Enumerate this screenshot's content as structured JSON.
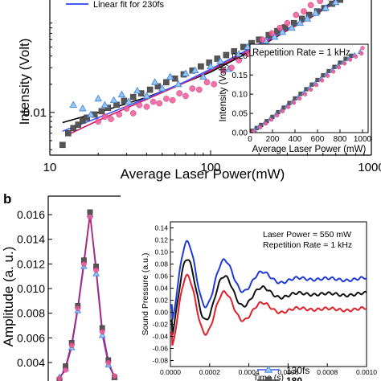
{
  "chart_data": [
    {
      "type": "scatter",
      "panel": "a",
      "xscale": "log",
      "yscale": "log",
      "xlabel": "Average Laser Power(mW)",
      "ylabel": "Intensity (Volt)",
      "xlim": [
        10,
        1000
      ],
      "ylim": [
        0.0035,
        0.35
      ],
      "x_ticks": [
        "10",
        "100",
        "1000"
      ],
      "y_ticks": [
        "0.01"
      ],
      "legend_visible": [
        "Linear fit for 230fs"
      ],
      "series": [
        {
          "marker": "square",
          "color": "#555555",
          "points": [
            [
              12,
              0.0045
            ],
            [
              13,
              0.006
            ],
            [
              14,
              0.0068
            ],
            [
              15,
              0.0074
            ],
            [
              16,
              0.0082
            ],
            [
              17,
              0.0088
            ],
            [
              19,
              0.0095
            ],
            [
              21,
              0.0103
            ],
            [
              23,
              0.0112
            ],
            [
              26,
              0.0121
            ],
            [
              29,
              0.0133
            ],
            [
              33,
              0.0146
            ],
            [
              37,
              0.016
            ],
            [
              42,
              0.0175
            ],
            [
              47,
              0.019
            ],
            [
              53,
              0.021
            ],
            [
              60,
              0.023
            ],
            [
              68,
              0.0255
            ],
            [
              77,
              0.028
            ],
            [
              87,
              0.031
            ],
            [
              98,
              0.034
            ],
            [
              110,
              0.0375
            ],
            [
              125,
              0.041
            ],
            [
              140,
              0.045
            ],
            [
              160,
              0.05
            ],
            [
              180,
              0.055
            ],
            [
              200,
              0.06
            ],
            [
              230,
              0.067
            ],
            [
              260,
              0.074
            ],
            [
              290,
              0.081
            ],
            [
              330,
              0.09
            ],
            [
              370,
              0.1
            ],
            [
              410,
              0.11
            ],
            [
              460,
              0.12
            ],
            [
              510,
              0.13
            ],
            [
              570,
              0.145
            ],
            [
              640,
              0.16
            ],
            [
              710,
              0.175
            ],
            [
              800,
              0.2
            ]
          ]
        },
        {
          "marker": "triangle",
          "color": "#4a8fe0",
          "points": [
            [
              14,
              0.012
            ],
            [
              16,
              0.011
            ],
            [
              18,
              0.0095
            ],
            [
              20,
              0.014
            ],
            [
              22,
              0.012
            ],
            [
              25,
              0.0135
            ],
            [
              28,
              0.0155
            ],
            [
              31,
              0.013
            ],
            [
              35,
              0.017
            ],
            [
              40,
              0.015
            ],
            [
              45,
              0.021
            ],
            [
              50,
              0.018
            ],
            [
              56,
              0.024
            ],
            [
              63,
              0.02
            ],
            [
              70,
              0.026
            ],
            [
              80,
              0.028
            ],
            [
              90,
              0.024
            ],
            [
              100,
              0.031
            ],
            [
              115,
              0.035
            ],
            [
              130,
              0.029
            ],
            [
              150,
              0.042
            ],
            [
              170,
              0.05
            ],
            [
              190,
              0.045
            ],
            [
              220,
              0.058
            ],
            [
              250,
              0.064
            ],
            [
              280,
              0.072
            ],
            [
              320,
              0.08
            ],
            [
              360,
              0.09
            ],
            [
              400,
              0.1
            ],
            [
              450,
              0.115
            ],
            [
              520,
              0.13
            ],
            [
              600,
              0.15
            ],
            [
              700,
              0.17
            ]
          ]
        },
        {
          "marker": "circle",
          "color": "#ee5a9a",
          "points": [
            [
              20,
              0.008
            ],
            [
              22,
              0.009
            ],
            [
              24,
              0.0085
            ],
            [
              27,
              0.0095
            ],
            [
              30,
              0.011
            ],
            [
              33,
              0.0098
            ],
            [
              36,
              0.012
            ],
            [
              40,
              0.0115
            ],
            [
              44,
              0.013
            ],
            [
              48,
              0.0125
            ],
            [
              53,
              0.014
            ],
            [
              58,
              0.0135
            ],
            [
              64,
              0.016
            ],
            [
              70,
              0.015
            ],
            [
              77,
              0.018
            ],
            [
              85,
              0.0175
            ],
            [
              95,
              0.021
            ],
            [
              105,
              0.02
            ],
            [
              120,
              0.028
            ],
            [
              135,
              0.03
            ],
            [
              150,
              0.036
            ],
            [
              170,
              0.042
            ],
            [
              190,
              0.05
            ],
            [
              210,
              0.06
            ],
            [
              240,
              0.07
            ],
            [
              270,
              0.08
            ],
            [
              300,
              0.09
            ],
            [
              340,
              0.11
            ],
            [
              380,
              0.12
            ],
            [
              420,
              0.14
            ],
            [
              480,
              0.155
            ],
            [
              540,
              0.17
            ],
            [
              600,
              0.19
            ]
          ]
        }
      ],
      "fits": [
        {
          "color": "#000000",
          "points": [
            [
              12,
              0.0078
            ],
            [
              20,
              0.01
            ],
            [
              40,
              0.0145
            ],
            [
              70,
              0.021
            ],
            [
              100,
              0.027
            ],
            [
              200,
              0.05
            ],
            [
              400,
              0.1
            ],
            [
              600,
              0.16
            ],
            [
              700,
              0.2
            ]
          ]
        },
        {
          "color": "#d81b60",
          "points": [
            [
              13,
              0.0058
            ],
            [
              20,
              0.0082
            ],
            [
              40,
              0.0138
            ],
            [
              70,
              0.021
            ],
            [
              100,
              0.028
            ],
            [
              200,
              0.052
            ],
            [
              400,
              0.098
            ],
            [
              600,
              0.15
            ],
            [
              680,
              0.2
            ]
          ]
        },
        {
          "color": "#3d5afe",
          "points": [
            [
              12,
              0.0063
            ],
            [
              20,
              0.0088
            ],
            [
              40,
              0.0142
            ],
            [
              70,
              0.0215
            ],
            [
              100,
              0.029
            ],
            [
              200,
              0.054
            ],
            [
              400,
              0.102
            ],
            [
              600,
              0.155
            ],
            [
              650,
              0.2
            ]
          ]
        }
      ]
    },
    {
      "type": "scatter",
      "panel": "a-inset",
      "title": "Repetition Rate = 1 kHz",
      "xlabel": "Average Laser Power (mW)",
      "ylabel": "Intensity (Volt)",
      "xlim": [
        0,
        1050
      ],
      "ylim": [
        0,
        0.23
      ],
      "x_ticks": [
        "0",
        "200",
        "400",
        "600",
        "800",
        "1000"
      ],
      "y_ticks": [
        "0.00",
        "0.05",
        "0.10",
        "0.15",
        "0.20"
      ],
      "series": [
        {
          "marker": "square",
          "color": "#555555",
          "points": [
            [
              20,
              0.005
            ],
            [
              60,
              0.012
            ],
            [
              100,
              0.02
            ],
            [
              150,
              0.03
            ],
            [
              200,
              0.041
            ],
            [
              250,
              0.053
            ],
            [
              300,
              0.065
            ],
            [
              350,
              0.077
            ],
            [
              400,
              0.089
            ],
            [
              450,
              0.101
            ],
            [
              500,
              0.113
            ],
            [
              550,
              0.125
            ],
            [
              600,
              0.137
            ],
            [
              650,
              0.149
            ],
            [
              700,
              0.16
            ],
            [
              750,
              0.171
            ],
            [
              800,
              0.182
            ],
            [
              850,
              0.192
            ],
            [
              900,
              0.2
            ]
          ]
        },
        {
          "marker": "triangle",
          "color": "#4a8fe0",
          "points": [
            [
              40,
              0.007
            ],
            [
              80,
              0.015
            ],
            [
              130,
              0.025
            ],
            [
              180,
              0.036
            ],
            [
              230,
              0.047
            ],
            [
              280,
              0.058
            ],
            [
              330,
              0.069
            ],
            [
              380,
              0.08
            ],
            [
              430,
              0.092
            ],
            [
              480,
              0.104
            ],
            [
              530,
              0.116
            ],
            [
              580,
              0.128
            ],
            [
              630,
              0.14
            ],
            [
              680,
              0.152
            ],
            [
              730,
              0.163
            ],
            [
              780,
              0.173
            ],
            [
              830,
              0.183
            ],
            [
              880,
              0.193
            ],
            [
              930,
              0.202
            ],
            [
              980,
              0.21
            ]
          ]
        },
        {
          "marker": "circle",
          "color": "#ee5a9a",
          "points": [
            [
              30,
              0.004
            ],
            [
              90,
              0.014
            ],
            [
              140,
              0.024
            ],
            [
              190,
              0.034
            ],
            [
              240,
              0.045
            ],
            [
              290,
              0.056
            ],
            [
              340,
              0.067
            ],
            [
              390,
              0.078
            ],
            [
              440,
              0.089
            ],
            [
              490,
              0.1
            ],
            [
              540,
              0.112
            ],
            [
              590,
              0.124
            ],
            [
              640,
              0.136
            ],
            [
              690,
              0.148
            ],
            [
              740,
              0.159
            ],
            [
              790,
              0.17
            ],
            [
              840,
              0.18
            ],
            [
              890,
              0.19
            ],
            [
              940,
              0.198
            ],
            [
              990,
              0.206
            ],
            [
              1000,
              0.22
            ]
          ]
        }
      ]
    },
    {
      "type": "line",
      "panel": "b",
      "ylabel": "Amplitude (a. u.)",
      "ylim": [
        0.0025,
        0.0175
      ],
      "y_ticks": [
        "0.004",
        "0.006",
        "0.008",
        "0.010",
        "0.012",
        "0.014",
        "0.016"
      ],
      "legend_visible": [
        "130fs",
        "180"
      ],
      "series": [
        {
          "marker": "triangle",
          "color": "#4a8fe0",
          "points": [
            [
              0,
              0.0028
            ],
            [
              1,
              0.0035
            ],
            [
              2,
              0.0052
            ],
            [
              3,
              0.0082
            ],
            [
              4,
              0.0118
            ],
            [
              5,
              0.016
            ],
            [
              6,
              0.0112
            ],
            [
              7,
              0.0062
            ],
            [
              8,
              0.0038
            ],
            [
              9,
              0.0028
            ]
          ]
        },
        {
          "marker": "square",
          "color": "#555555",
          "points": [
            [
              0,
              0.0026
            ],
            [
              1,
              0.0037
            ],
            [
              2,
              0.0056
            ],
            [
              3,
              0.0086
            ],
            [
              4,
              0.0123
            ],
            [
              5,
              0.0162
            ],
            [
              6,
              0.0118
            ],
            [
              7,
              0.0068
            ],
            [
              8,
              0.0042
            ],
            [
              9,
              0.0028
            ]
          ]
        },
        {
          "marker": "circle",
          "color": "#ee5a9a",
          "points": [
            [
              0,
              0.0027
            ],
            [
              1,
              0.0034
            ],
            [
              2,
              0.0054
            ],
            [
              3,
              0.0084
            ],
            [
              4,
              0.012
            ],
            [
              5,
              0.0158
            ],
            [
              6,
              0.0115
            ],
            [
              7,
              0.0065
            ],
            [
              8,
              0.004
            ],
            [
              9,
              0.0029
            ]
          ]
        }
      ]
    },
    {
      "type": "line",
      "panel": "b-inset",
      "annotations": [
        "Laser Power = 550 mW",
        "Repetition Rate = 1 kHz"
      ],
      "xlabel": "Time (s)",
      "ylabel": "Sound Pressure (a.u.)",
      "xlim": [
        0,
        0.001
      ],
      "ylim": [
        -0.09,
        0.15
      ],
      "x_ticks": [
        "0.0000",
        "0.0002",
        "0.0004",
        "0.0006",
        "0.0008",
        "0.0010"
      ],
      "y_ticks": [
        "-0.08",
        "-0.06",
        "-0.04",
        "-0.02",
        "0.00",
        "0.02",
        "0.04",
        "0.06",
        "0.08",
        "0.10",
        "0.12",
        "0.14"
      ],
      "series": [
        {
          "color": "#1f3bd6",
          "offset": 0.055
        },
        {
          "color": "#111111",
          "offset": 0.03
        },
        {
          "color": "#e0202a",
          "offset": 0.005
        }
      ]
    }
  ],
  "labels": {
    "panel_b": "b",
    "legend_a": "Linear fit for 230fs",
    "legend_b1": "130fs",
    "legend_b2": "180"
  }
}
